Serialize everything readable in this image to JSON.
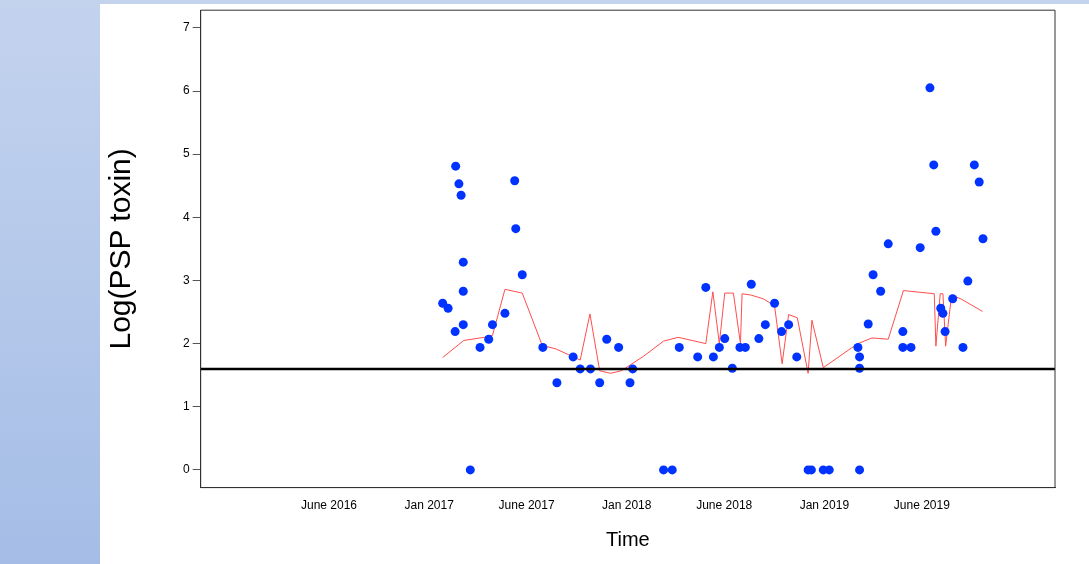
{
  "chart_data": {
    "type": "scatter",
    "xlabel": "Time",
    "ylabel": "Log(PSP toxin)",
    "xlim": [
      "2015-11-06",
      "2020-03-02"
    ],
    "ylim": [
      -0.28,
      7.28
    ],
    "xticks": [
      {
        "value": "2016-06-30",
        "label": "June 2016"
      },
      {
        "value": "2017-01-01",
        "label": "Jan 2017"
      },
      {
        "value": "2017-06-30",
        "label": "June 2017"
      },
      {
        "value": "2018-01-01",
        "label": "Jan 2018"
      },
      {
        "value": "2018-06-30",
        "label": "June 2018"
      },
      {
        "value": "2019-01-01",
        "label": "Jan 2019"
      },
      {
        "value": "2019-06-30",
        "label": "June 2019"
      }
    ],
    "yticks": [
      0,
      1,
      2,
      3,
      4,
      5,
      6,
      7
    ],
    "grid": false,
    "legend": false,
    "marker": "circle",
    "ref_lines": [
      {
        "axis": "y",
        "value": 1.6,
        "color": "#000000"
      }
    ],
    "series": [
      {
        "color": "#0033ff",
        "x": [
          "2017-01-26",
          "2017-02-05",
          "2017-02-19",
          "2017-02-25",
          "2017-03-01",
          "2017-03-05",
          "2017-03-05",
          "2017-03-05",
          "2017-02-18",
          "2017-03-18",
          "2017-04-05",
          "2017-04-21",
          "2017-04-28",
          "2017-05-21",
          "2017-06-08",
          "2017-06-10",
          "2017-06-22",
          "2017-07-30",
          "2017-08-25",
          "2017-09-24",
          "2017-10-07",
          "2017-10-26",
          "2017-11-12",
          "2017-11-25",
          "2017-12-17",
          "2018-01-07",
          "2018-01-12",
          "2018-03-10",
          "2018-03-26",
          "2018-04-08",
          "2018-05-12",
          "2018-05-27",
          "2018-06-10",
          "2018-06-21",
          "2018-07-01",
          "2018-07-15",
          "2018-07-29",
          "2018-08-08",
          "2018-08-19",
          "2018-09-02",
          "2018-09-14",
          "2018-10-01",
          "2018-10-14",
          "2018-10-27",
          "2018-11-11",
          "2018-12-02",
          "2018-12-08",
          "2018-12-30",
          "2019-01-10",
          "2019-03-04",
          "2019-03-07",
          "2019-03-07",
          "2019-03-07",
          "2019-03-23",
          "2019-04-01",
          "2019-04-15",
          "2019-04-29",
          "2019-05-26",
          "2019-05-26",
          "2019-06-10",
          "2019-06-27",
          "2019-07-15",
          "2019-07-22",
          "2019-07-26",
          "2019-08-04",
          "2019-08-08",
          "2019-08-12",
          "2019-08-26",
          "2019-09-14",
          "2019-09-23",
          "2019-10-05",
          "2019-10-14",
          "2019-10-21"
        ],
        "values": [
          2.64,
          2.56,
          4.81,
          4.53,
          4.35,
          3.29,
          2.83,
          2.3,
          2.19,
          0,
          1.94,
          2.07,
          2.3,
          2.48,
          4.58,
          3.82,
          3.09,
          1.94,
          1.38,
          1.79,
          1.6,
          1.6,
          1.38,
          2.07,
          1.94,
          1.38,
          1.6,
          0,
          0,
          1.94,
          1.79,
          2.89,
          1.79,
          1.94,
          2.08,
          1.61,
          1.94,
          1.94,
          2.94,
          2.08,
          2.3,
          2.64,
          2.19,
          2.3,
          1.79,
          0,
          0,
          0,
          0,
          1.94,
          1.79,
          1.61,
          0,
          2.31,
          3.09,
          2.83,
          3.58,
          2.19,
          1.94,
          1.94,
          3.52,
          6.05,
          4.83,
          3.78,
          2.56,
          2.48,
          2.19,
          2.71,
          1.94,
          2.99,
          4.83,
          4.56,
          3.66
        ]
      },
      {
        "type": "line",
        "color": "#ff4d4d",
        "marker": "none",
        "x": [
          "2017-01-26",
          "2017-03-06",
          "2017-04-13",
          "2017-04-28",
          "2017-05-21",
          "2017-06-22",
          "2017-07-29",
          "2017-08-22",
          "2017-10-07",
          "2017-10-25",
          "2017-11-12",
          "2017-12-02",
          "2017-12-22",
          "2018-02-01",
          "2018-03-10",
          "2018-04-06",
          "2018-05-27",
          "2018-06-09",
          "2018-06-21",
          "2018-07-01",
          "2018-07-17",
          "2018-07-30",
          "2018-08-02",
          "2018-08-18",
          "2018-09-10",
          "2018-10-01",
          "2018-10-15",
          "2018-10-27",
          "2018-11-12",
          "2018-12-02",
          "2018-12-09",
          "2018-12-30",
          "2019-02-20",
          "2019-03-04",
          "2019-03-30",
          "2019-04-29",
          "2019-05-27",
          "2019-07-23",
          "2019-07-26",
          "2019-08-03",
          "2019-08-08",
          "2019-08-13",
          "2019-08-24",
          "2019-09-12",
          "2019-10-20"
        ],
        "values": [
          1.78,
          2.05,
          2.1,
          2.13,
          2.86,
          2.8,
          1.97,
          1.92,
          1.74,
          2.47,
          1.57,
          1.53,
          1.57,
          1.8,
          2.04,
          2.1,
          2.0,
          2.82,
          2.0,
          2.8,
          2.8,
          2.0,
          2.79,
          2.77,
          2.71,
          2.6,
          1.68,
          2.46,
          2.41,
          1.53,
          2.37,
          1.62,
          1.93,
          2.0,
          2.09,
          2.07,
          2.84,
          2.79,
          1.96,
          2.79,
          2.79,
          1.96,
          2.77,
          2.7,
          2.51
        ]
      }
    ]
  }
}
